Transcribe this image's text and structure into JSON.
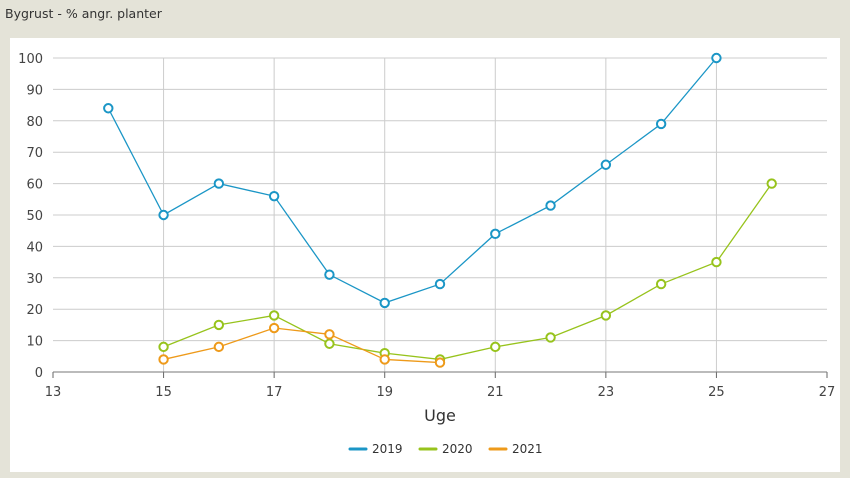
{
  "header": {
    "title": "Bygrust - % angr. planter"
  },
  "colors": {
    "background": "#e4e3d8",
    "plot_background": "#ffffff",
    "grid": "#cccccc",
    "s2019": "#1b96c6",
    "s2020": "#97c31c",
    "s2021": "#ee9a1a"
  },
  "chart_data": {
    "type": "line",
    "title": "Bygrust - % angr. planter",
    "xlabel": "Uge",
    "ylabel": "",
    "xlim": [
      13,
      27
    ],
    "ylim": [
      0,
      100
    ],
    "xticks": [
      13,
      15,
      17,
      19,
      21,
      23,
      25,
      27
    ],
    "yticks": [
      0,
      10,
      20,
      30,
      40,
      50,
      60,
      70,
      80,
      90,
      100
    ],
    "grid": true,
    "legend_position": "bottom-center",
    "series": [
      {
        "name": "2019",
        "color": "#1b96c6",
        "x": [
          14,
          15,
          16,
          17,
          18,
          19,
          20,
          21,
          22,
          23,
          24,
          25
        ],
        "y": [
          84,
          50,
          60,
          56,
          31,
          22,
          28,
          44,
          53,
          66,
          79,
          100
        ]
      },
      {
        "name": "2020",
        "color": "#97c31c",
        "x": [
          15,
          16,
          17,
          18,
          19,
          20,
          21,
          22,
          23,
          24,
          25,
          26
        ],
        "y": [
          8,
          15,
          18,
          9,
          6,
          4,
          8,
          11,
          18,
          28,
          35,
          60
        ]
      },
      {
        "name": "2021",
        "color": "#ee9a1a",
        "x": [
          15,
          16,
          17,
          18,
          19,
          20
        ],
        "y": [
          4,
          8,
          14,
          12,
          4,
          3
        ]
      }
    ]
  }
}
